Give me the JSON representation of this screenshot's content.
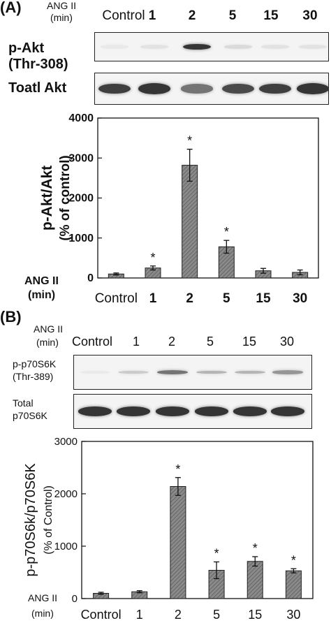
{
  "panel_a": {
    "letter": "(A)",
    "header": {
      "treatment": "ANG II",
      "unit": "(min)"
    },
    "lanes": [
      "Control",
      "1",
      "2",
      "5",
      "15",
      "30"
    ],
    "blots": [
      {
        "label_line1": "p-Akt",
        "label_line2": "(Thr-308)"
      },
      {
        "label_line1": "Toatl Akt",
        "label_line2": ""
      }
    ],
    "band_intensity": {
      "phospho": [
        0.05,
        0.08,
        0.9,
        0.12,
        0.08,
        0.08
      ],
      "total": [
        0.85,
        0.9,
        0.6,
        0.8,
        0.85,
        0.9
      ]
    },
    "chart_side_label": {
      "treatment": "ANG II",
      "unit": "(min)"
    }
  },
  "panel_b": {
    "letter": "(B)",
    "header": {
      "treatment": "ANG II",
      "unit": "(min)"
    },
    "lanes": [
      "Control",
      "1",
      "2",
      "5",
      "15",
      "30"
    ],
    "blots": [
      {
        "label_line1": "p-p70S6K",
        "label_line2": "(Thr-389)"
      },
      {
        "label_line1": "Total",
        "label_line2": "p70S6K"
      }
    ],
    "band_intensity": {
      "phospho": [
        0.05,
        0.2,
        0.6,
        0.3,
        0.3,
        0.45
      ],
      "total": [
        0.9,
        0.9,
        0.9,
        0.9,
        0.9,
        0.9
      ]
    },
    "chart_side_label": {
      "treatment": "ANG II",
      "unit": "(min)"
    }
  },
  "chart_data": [
    {
      "type": "bar",
      "categories": [
        "Control",
        "1",
        "2",
        "5",
        "15",
        "30"
      ],
      "values": [
        100,
        250,
        2820,
        780,
        180,
        140
      ],
      "errors": [
        25,
        50,
        400,
        160,
        60,
        60
      ],
      "significant": [
        false,
        true,
        true,
        true,
        false,
        false
      ],
      "significance_mark": "*",
      "ylabel_line1": "p-Akt/Akt",
      "ylabel_line2": "(% of control)",
      "yticks": [
        "0",
        "1000",
        "2000",
        "3000",
        "4000"
      ],
      "ylim": [
        0,
        4000
      ],
      "bar_fill": "#8a8a8a"
    },
    {
      "type": "bar",
      "categories": [
        "Control",
        "1",
        "2",
        "5",
        "15",
        "30"
      ],
      "values": [
        100,
        130,
        2140,
        540,
        710,
        530
      ],
      "errors": [
        20,
        20,
        170,
        160,
        90,
        40
      ],
      "significant": [
        false,
        false,
        true,
        true,
        true,
        true
      ],
      "significance_mark": "*",
      "ylabel_line1": "p-p70S6k/p70S6K",
      "ylabel_line2": "(% of Control)",
      "yticks": [
        "0",
        "1000",
        "2000",
        "3000"
      ],
      "ylim": [
        0,
        3000
      ],
      "bar_fill": "#8a8a8a"
    }
  ]
}
